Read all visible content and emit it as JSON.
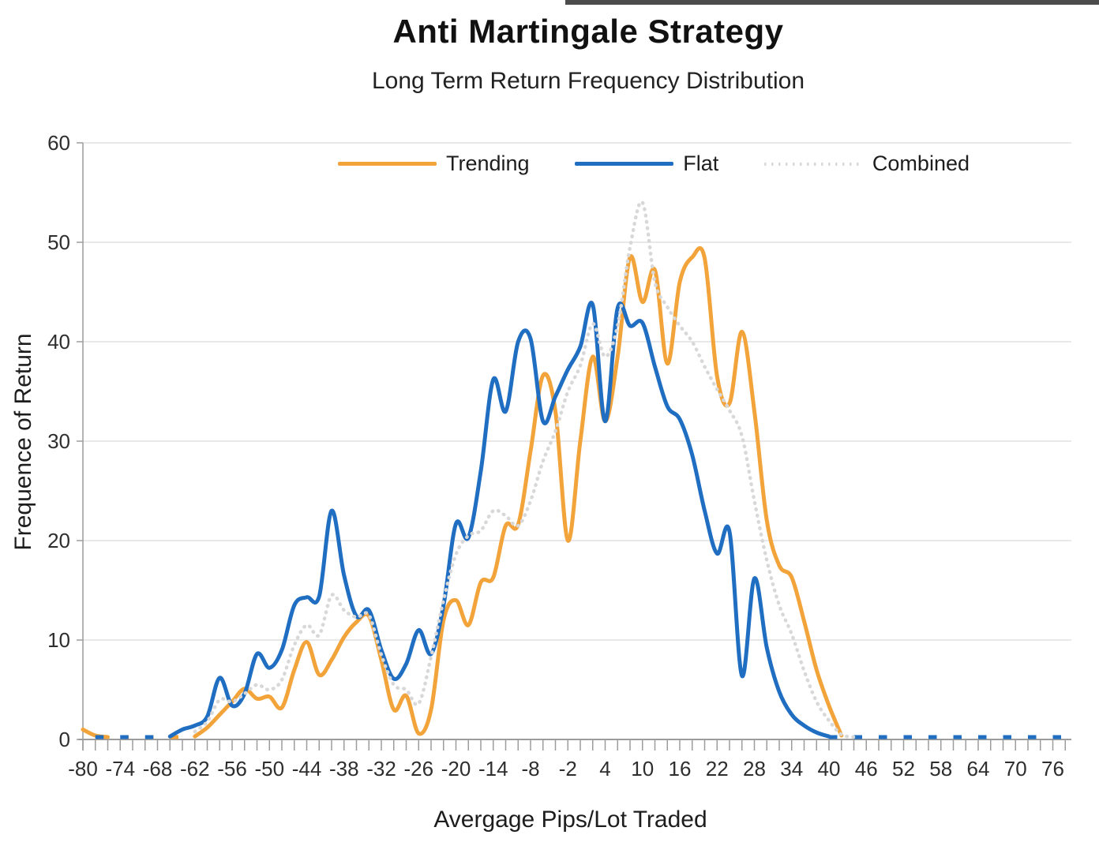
{
  "header": {
    "title": "Anti Martingale Strategy",
    "subtitle": "Long Term Return Frequency Distribution"
  },
  "chart_data": {
    "type": "line",
    "title": "Anti Martingale Strategy",
    "subtitle": "Long Term Return Frequency Distribution",
    "xlabel": "Avergage Pips/Lot Traded",
    "ylabel": "Frequence of Return",
    "ylim": [
      0,
      60
    ],
    "yticks": [
      0,
      10,
      20,
      30,
      40,
      50,
      60
    ],
    "xlim": [
      -80,
      79
    ],
    "xtick_labels": [
      -80,
      -74,
      -68,
      -62,
      -56,
      -50,
      -44,
      -38,
      -32,
      -26,
      -20,
      -14,
      -8,
      -2,
      4,
      10,
      16,
      22,
      28,
      34,
      40,
      46,
      52,
      58,
      64,
      70,
      76
    ],
    "minor_tick_step": 2,
    "grid": "horizontal",
    "legend_position": "top-center-inside",
    "x": [
      -80,
      -78,
      -76,
      -74,
      -72,
      -70,
      -68,
      -66,
      -64,
      -62,
      -60,
      -58,
      -56,
      -54,
      -52,
      -50,
      -48,
      -46,
      -44,
      -42,
      -40,
      -38,
      -36,
      -34,
      -32,
      -30,
      -28,
      -26,
      -24,
      -22,
      -20,
      -18,
      -16,
      -14,
      -12,
      -10,
      -8,
      -6,
      -4,
      -2,
      0,
      2,
      4,
      6,
      8,
      10,
      12,
      14,
      16,
      18,
      20,
      22,
      24,
      26,
      28,
      30,
      32,
      34,
      36,
      38,
      40,
      42,
      44,
      46,
      48,
      50,
      52,
      54,
      56,
      58,
      60,
      62,
      64,
      66,
      68,
      70,
      72,
      74,
      76,
      78
    ],
    "series": [
      {
        "name": "Trending",
        "color": "#F2A33A",
        "style": "solid",
        "values": [
          1,
          0.4,
          0,
          0,
          0,
          0,
          0,
          0,
          0,
          0.3,
          1.2,
          2.5,
          3.8,
          5.1,
          4.1,
          4.3,
          3.2,
          7,
          9.8,
          6.5,
          8,
          10.3,
          11.8,
          12.4,
          8,
          3,
          4.4,
          0.6,
          3,
          12,
          14,
          11.5,
          15.8,
          16.3,
          21.5,
          21.6,
          29,
          36.6,
          33,
          20,
          30,
          38.5,
          32,
          38.5,
          48.5,
          44,
          47.2,
          37.8,
          46,
          48.5,
          48.4,
          36.5,
          33.8,
          41,
          33,
          22,
          17.5,
          16.3,
          11.9,
          7,
          3.4,
          0.4,
          0,
          0,
          0,
          0,
          0,
          0,
          0,
          0,
          0,
          0,
          0,
          0,
          0,
          0,
          0,
          0,
          0,
          0
        ],
        "solid_ranges": [
          [
            -80,
            -75
          ],
          [
            -62,
            43
          ]
        ],
        "zero_dash_ranges": [
          [
            -76,
            -62
          ]
        ]
      },
      {
        "name": "Flat",
        "color": "#1F6EC2",
        "style": "solid",
        "values": [
          0,
          0,
          0,
          0,
          0,
          0,
          0,
          0.3,
          1,
          1.4,
          2.3,
          6.2,
          3.4,
          4.6,
          8.6,
          7.2,
          9,
          13.5,
          14.3,
          14.4,
          23,
          16.5,
          12.4,
          13,
          9,
          6.1,
          7.6,
          11,
          8.6,
          13.5,
          21.7,
          20.3,
          27,
          36.2,
          33,
          40,
          40.3,
          32,
          34.5,
          37.2,
          39.5,
          43.7,
          32,
          43.4,
          41.6,
          41.9,
          37.5,
          33.5,
          32.2,
          28.6,
          23,
          18.7,
          20.9,
          6.4,
          16.2,
          9.2,
          4.8,
          2.5,
          1.4,
          0.7,
          0.3,
          0.3,
          0.3,
          0.3,
          0.3,
          0.3,
          0.3,
          0.3,
          0.3,
          0.3,
          0.3,
          0.3,
          0.3,
          0.3,
          0.3,
          0.3,
          0.3,
          0.3,
          0.3,
          0.3
        ],
        "solid_ranges": [
          [
            -66,
            40.5
          ]
        ],
        "zero_dash_ranges": [
          [
            -78,
            -66
          ],
          [
            40,
            79
          ]
        ]
      },
      {
        "name": "Combined",
        "color": "#D8D8D8",
        "style": "dotted",
        "values": [
          0,
          0,
          0,
          0,
          0,
          0,
          0,
          0,
          0.2,
          0.8,
          1.8,
          4,
          3.8,
          4.6,
          5.5,
          5,
          6,
          9.5,
          11.5,
          10.5,
          14.5,
          13,
          12.3,
          12.5,
          8.5,
          5.5,
          5,
          3.6,
          8.3,
          14,
          18.6,
          20.5,
          21,
          23,
          22.5,
          21.5,
          24,
          28,
          31,
          35,
          37.6,
          41.8,
          38.5,
          41.6,
          49.5,
          54,
          46,
          43.5,
          41.6,
          40,
          37.5,
          35.2,
          33.1,
          30.5,
          24,
          18,
          13.5,
          10.6,
          6.9,
          3.8,
          1.9,
          0.5,
          0,
          0,
          0,
          0,
          0,
          0,
          0,
          0,
          0,
          0,
          0,
          0,
          0,
          0,
          0,
          0,
          0,
          0
        ],
        "solid_ranges": [
          [
            -63,
            44
          ]
        ],
        "zero_dash_ranges": []
      }
    ],
    "colors": {
      "grid": "#E0E0E0",
      "axis": "#9C9C9C",
      "tick_text": "#2E2E2E",
      "title": "#111111"
    }
  }
}
